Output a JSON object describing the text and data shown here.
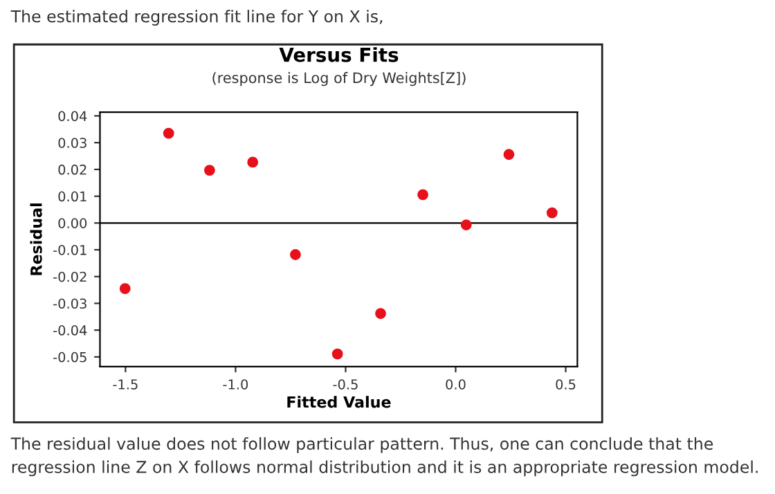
{
  "chart_data": {
    "type": "scatter",
    "title": "Versus Fits",
    "subtitle": "(response is Log of Dry Weights[Z])",
    "xlabel": "Fitted Value",
    "ylabel": "Residual",
    "annotations": [
      "The estimated regression fit line for Y on X is,",
      "The residual value does not follow particular pattern. Thus, one can conclude that the regression line Z on X follows normal distribution and it is an appropriate regression model."
    ],
    "x": [
      -1.502,
      -1.304,
      -1.118,
      -0.922,
      -0.728,
      -0.537,
      -0.341,
      -0.149,
      0.048,
      0.242,
      0.438
    ],
    "series": [
      {
        "color": "#e8101a",
        "values": [
          -0.0245,
          0.0335,
          0.0197,
          0.0227,
          -0.0118,
          -0.0489,
          -0.0338,
          0.0106,
          -0.0007,
          0.0256,
          0.0038
        ]
      }
    ],
    "xlim": [
      -1.616,
      0.553
    ],
    "ylim": [
      -0.0536,
      0.0414
    ],
    "xticks": [
      {
        "value": -1.5,
        "label": "-1.5"
      },
      {
        "value": -1.0,
        "label": "-1.0"
      },
      {
        "value": -0.5,
        "label": "-0.5"
      },
      {
        "value": 0.0,
        "label": "0.0"
      },
      {
        "value": 0.5,
        "label": "0.5"
      }
    ],
    "yticks": [
      {
        "value": 0.04,
        "label": "0.04"
      },
      {
        "value": 0.03,
        "label": "0.03"
      },
      {
        "value": 0.02,
        "label": "0.02"
      },
      {
        "value": 0.01,
        "label": "0.01"
      },
      {
        "value": 0.0,
        "label": "0.00"
      },
      {
        "value": -0.01,
        "label": "-0.01"
      },
      {
        "value": -0.02,
        "label": "-0.02"
      },
      {
        "value": -0.03,
        "label": "-0.03"
      },
      {
        "value": -0.04,
        "label": "-0.04"
      },
      {
        "value": -0.05,
        "label": "-0.05"
      }
    ],
    "ref_lines": [
      {
        "axis": "y",
        "value": 0,
        "color": "#000000"
      }
    ],
    "marker": "circle",
    "grid": false,
    "legend": false
  }
}
